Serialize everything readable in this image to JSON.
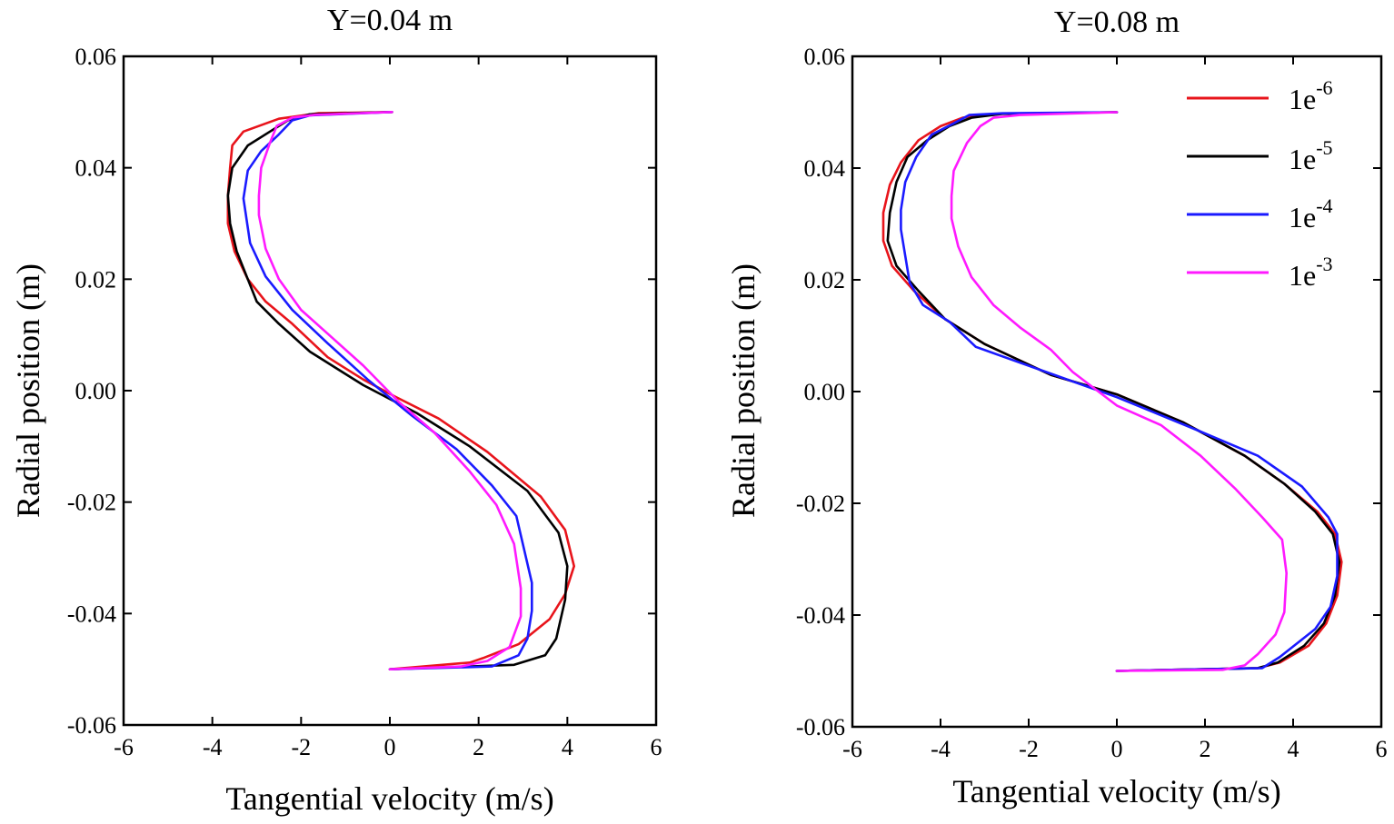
{
  "chart_data": [
    {
      "type": "line",
      "title": "Y=0.04 m",
      "xlabel": "Tangential velocity (m/s)",
      "ylabel": "Radial position (m)",
      "xlim": [
        -6,
        6
      ],
      "ylim": [
        -0.06,
        0.06
      ],
      "x_ticks": [
        -6,
        -4,
        -2,
        0,
        2,
        4,
        6
      ],
      "x_tick_labels": [
        "-6",
        "-4",
        "-2",
        "0",
        "2",
        "4",
        "6"
      ],
      "y_ticks": [
        -0.06,
        -0.04,
        -0.02,
        0.0,
        0.02,
        0.04,
        0.06
      ],
      "y_tick_labels": [
        "-0.06",
        "-0.04",
        "-0.02",
        "0.00",
        "0.02",
        "0.04",
        "0.06"
      ],
      "legend": false,
      "series": [
        {
          "name": "1e-6",
          "color": "#e8141b",
          "points": [
            [
              0.05,
              0.05
            ],
            [
              -1.6,
              0.0498
            ],
            [
              -2.5,
              0.0488
            ],
            [
              -3.3,
              0.0465
            ],
            [
              -3.55,
              0.044
            ],
            [
              -3.6,
              0.04
            ],
            [
              -3.65,
              0.035
            ],
            [
              -3.65,
              0.03
            ],
            [
              -3.5,
              0.025
            ],
            [
              -3.2,
              0.02
            ],
            [
              -2.8,
              0.016
            ],
            [
              -2.2,
              0.012
            ],
            [
              -1.4,
              0.006
            ],
            [
              -0.6,
              0.002
            ],
            [
              0.1,
              -0.001
            ],
            [
              1.1,
              -0.005
            ],
            [
              2.2,
              -0.011
            ],
            [
              3.4,
              -0.019
            ],
            [
              3.95,
              -0.025
            ],
            [
              4.15,
              -0.0315
            ],
            [
              3.95,
              -0.0365
            ],
            [
              3.6,
              -0.041
            ],
            [
              2.9,
              -0.0455
            ],
            [
              2.1,
              -0.048
            ],
            [
              1.8,
              -0.0488
            ],
            [
              0.0,
              -0.05
            ]
          ]
        },
        {
          "name": "1e-5",
          "color": "#000000",
          "points": [
            [
              0.05,
              0.05
            ],
            [
              -1.8,
              0.0496
            ],
            [
              -2.3,
              0.0485
            ],
            [
              -2.7,
              0.0465
            ],
            [
              -3.2,
              0.044
            ],
            [
              -3.55,
              0.04
            ],
            [
              -3.65,
              0.035
            ],
            [
              -3.6,
              0.03
            ],
            [
              -3.45,
              0.025
            ],
            [
              -3.2,
              0.02
            ],
            [
              -3.0,
              0.016
            ],
            [
              -2.5,
              0.012
            ],
            [
              -1.8,
              0.007
            ],
            [
              -0.6,
              0.001
            ],
            [
              0.6,
              -0.004
            ],
            [
              1.8,
              -0.01
            ],
            [
              3.1,
              -0.018
            ],
            [
              3.8,
              -0.0255
            ],
            [
              4.0,
              -0.0315
            ],
            [
              3.95,
              -0.0375
            ],
            [
              3.75,
              -0.0445
            ],
            [
              3.5,
              -0.0475
            ],
            [
              2.8,
              -0.0492
            ],
            [
              0.0,
              -0.05
            ]
          ]
        },
        {
          "name": "1e-4",
          "color": "#1a1aff",
          "points": [
            [
              0.05,
              0.05
            ],
            [
              -1.8,
              0.0494
            ],
            [
              -2.2,
              0.0485
            ],
            [
              -2.5,
              0.046
            ],
            [
              -2.9,
              0.043
            ],
            [
              -3.2,
              0.0395
            ],
            [
              -3.3,
              0.0345
            ],
            [
              -3.15,
              0.0265
            ],
            [
              -2.8,
              0.0205
            ],
            [
              -2.2,
              0.0145
            ],
            [
              -1.4,
              0.0085
            ],
            [
              -0.5,
              0.002
            ],
            [
              0.5,
              -0.0045
            ],
            [
              1.5,
              -0.0105
            ],
            [
              2.3,
              -0.017
            ],
            [
              2.85,
              -0.0225
            ],
            [
              3.2,
              -0.0345
            ],
            [
              3.2,
              -0.0395
            ],
            [
              3.1,
              -0.0445
            ],
            [
              2.9,
              -0.0475
            ],
            [
              2.3,
              -0.0495
            ],
            [
              0.0,
              -0.05
            ]
          ]
        },
        {
          "name": "1e-3",
          "color": "#ff1aff",
          "points": [
            [
              0.05,
              0.05
            ],
            [
              -1.7,
              0.0495
            ],
            [
              -2.2,
              0.049
            ],
            [
              -2.55,
              0.0475
            ],
            [
              -2.7,
              0.0445
            ],
            [
              -2.9,
              0.04
            ],
            [
              -2.95,
              0.035
            ],
            [
              -2.95,
              0.0315
            ],
            [
              -2.8,
              0.0255
            ],
            [
              -2.5,
              0.02
            ],
            [
              -2.0,
              0.0145
            ],
            [
              -1.3,
              0.0095
            ],
            [
              -0.6,
              0.0045
            ],
            [
              0.2,
              -0.002
            ],
            [
              1.0,
              -0.0075
            ],
            [
              1.8,
              -0.0145
            ],
            [
              2.4,
              -0.0205
            ],
            [
              2.8,
              -0.0275
            ],
            [
              2.95,
              -0.0355
            ],
            [
              2.95,
              -0.0405
            ],
            [
              2.7,
              -0.046
            ],
            [
              2.2,
              -0.0485
            ],
            [
              1.6,
              -0.0495
            ],
            [
              0.0,
              -0.05
            ]
          ]
        }
      ]
    },
    {
      "type": "line",
      "title": "Y=0.08 m",
      "xlabel": "Tangential velocity (m/s)",
      "ylabel": "Radial position (m)",
      "xlim": [
        -6,
        6
      ],
      "ylim": [
        -0.06,
        0.06
      ],
      "x_ticks": [
        -6,
        -4,
        -2,
        0,
        2,
        4,
        6
      ],
      "x_tick_labels": [
        "-6",
        "-4",
        "-2",
        "0",
        "2",
        "4",
        "6"
      ],
      "y_ticks": [
        -0.06,
        -0.04,
        -0.02,
        0.0,
        0.02,
        0.04,
        0.06
      ],
      "y_tick_labels": [
        "-0.06",
        "-0.04",
        "-0.02",
        "0.00",
        "0.02",
        "0.04",
        "0.06"
      ],
      "legend": true,
      "legend_position": "top-right",
      "series": [
        {
          "name": "1e-6",
          "legend_base": "1e",
          "legend_exp": "-6",
          "color": "#e8141b",
          "points": [
            [
              0.0,
              0.05
            ],
            [
              -2.8,
              0.0497
            ],
            [
              -3.5,
              0.049
            ],
            [
              -4.0,
              0.0475
            ],
            [
              -4.5,
              0.045
            ],
            [
              -4.9,
              0.041
            ],
            [
              -5.15,
              0.037
            ],
            [
              -5.3,
              0.032
            ],
            [
              -5.3,
              0.027
            ],
            [
              -5.1,
              0.0225
            ],
            [
              -4.6,
              0.018
            ],
            [
              -3.9,
              0.013
            ],
            [
              -3.0,
              0.0085
            ],
            [
              -1.5,
              0.003
            ],
            [
              0.0,
              -0.0005
            ],
            [
              1.5,
              -0.0055
            ],
            [
              2.9,
              -0.0115
            ],
            [
              3.8,
              -0.0165
            ],
            [
              4.55,
              -0.0215
            ],
            [
              4.95,
              -0.0255
            ],
            [
              5.1,
              -0.0305
            ],
            [
              5.0,
              -0.0365
            ],
            [
              4.75,
              -0.0415
            ],
            [
              4.35,
              -0.0455
            ],
            [
              3.7,
              -0.0485
            ],
            [
              3.2,
              -0.0495
            ],
            [
              0.0,
              -0.05
            ]
          ]
        },
        {
          "name": "1e-5",
          "legend_base": "1e",
          "legend_exp": "-5",
          "color": "#000000",
          "points": [
            [
              0.0,
              0.05
            ],
            [
              -2.6,
              0.0497
            ],
            [
              -3.3,
              0.049
            ],
            [
              -3.8,
              0.0475
            ],
            [
              -4.3,
              0.045
            ],
            [
              -4.75,
              0.042
            ],
            [
              -5.0,
              0.0375
            ],
            [
              -5.15,
              0.032
            ],
            [
              -5.2,
              0.027
            ],
            [
              -5.0,
              0.0225
            ],
            [
              -4.5,
              0.018
            ],
            [
              -3.9,
              0.013
            ],
            [
              -3.0,
              0.0085
            ],
            [
              -1.5,
              0.003
            ],
            [
              0.0,
              -0.0005
            ],
            [
              1.5,
              -0.0055
            ],
            [
              2.9,
              -0.0115
            ],
            [
              3.8,
              -0.0165
            ],
            [
              4.5,
              -0.0215
            ],
            [
              4.9,
              -0.0255
            ],
            [
              5.05,
              -0.0305
            ],
            [
              4.95,
              -0.0365
            ],
            [
              4.7,
              -0.0415
            ],
            [
              4.25,
              -0.0455
            ],
            [
              3.65,
              -0.0485
            ],
            [
              3.2,
              -0.0495
            ],
            [
              0.0,
              -0.05
            ]
          ]
        },
        {
          "name": "1e-4",
          "legend_base": "1e",
          "legend_exp": "-4",
          "color": "#1a1aff",
          "points": [
            [
              0.0,
              0.05
            ],
            [
              -2.6,
              0.0498
            ],
            [
              -3.35,
              0.0495
            ],
            [
              -3.7,
              0.048
            ],
            [
              -4.2,
              0.046
            ],
            [
              -4.55,
              0.042
            ],
            [
              -4.8,
              0.0375
            ],
            [
              -4.9,
              0.0325
            ],
            [
              -4.9,
              0.029
            ],
            [
              -4.7,
              0.0195
            ],
            [
              -4.4,
              0.0155
            ],
            [
              -3.8,
              0.0125
            ],
            [
              -3.2,
              0.008
            ],
            [
              -1.6,
              0.0035
            ],
            [
              0.0,
              -0.001
            ],
            [
              1.7,
              -0.0065
            ],
            [
              3.2,
              -0.0115
            ],
            [
              4.2,
              -0.017
            ],
            [
              4.8,
              -0.0225
            ],
            [
              5.0,
              -0.0255
            ],
            [
              5.0,
              -0.033
            ],
            [
              4.85,
              -0.0385
            ],
            [
              4.5,
              -0.0425
            ],
            [
              3.7,
              -0.0475
            ],
            [
              3.3,
              -0.0495
            ],
            [
              0.0,
              -0.05
            ]
          ]
        },
        {
          "name": "1e-3",
          "legend_base": "1e",
          "legend_exp": "-3",
          "color": "#ff1aff",
          "points": [
            [
              0.0,
              0.05
            ],
            [
              -2.2,
              0.0495
            ],
            [
              -2.8,
              0.049
            ],
            [
              -3.1,
              0.0475
            ],
            [
              -3.4,
              0.0445
            ],
            [
              -3.7,
              0.0395
            ],
            [
              -3.75,
              0.035
            ],
            [
              -3.75,
              0.031
            ],
            [
              -3.6,
              0.026
            ],
            [
              -3.3,
              0.0205
            ],
            [
              -2.8,
              0.0155
            ],
            [
              -2.2,
              0.0115
            ],
            [
              -1.5,
              0.0075
            ],
            [
              -1.0,
              0.0035
            ],
            [
              0.0,
              -0.0025
            ],
            [
              1.0,
              -0.006
            ],
            [
              1.9,
              -0.0115
            ],
            [
              2.7,
              -0.0175
            ],
            [
              3.3,
              -0.0225
            ],
            [
              3.75,
              -0.0265
            ],
            [
              3.85,
              -0.0325
            ],
            [
              3.8,
              -0.0395
            ],
            [
              3.6,
              -0.0435
            ],
            [
              3.2,
              -0.047
            ],
            [
              2.9,
              -0.049
            ],
            [
              2.4,
              -0.0498
            ],
            [
              0.0,
              -0.05
            ]
          ]
        }
      ]
    }
  ]
}
